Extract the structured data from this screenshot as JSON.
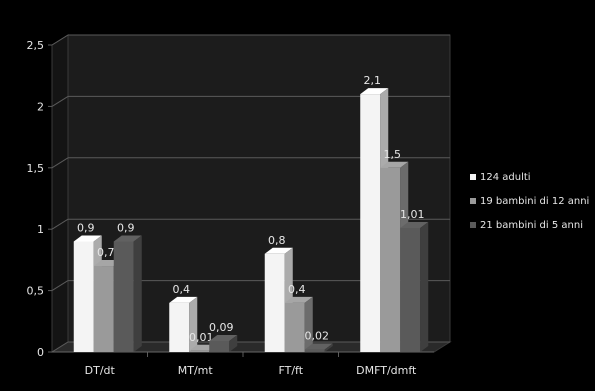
{
  "chart_data": {
    "type": "bar",
    "categories": [
      "DT/dt",
      "MT/mt",
      "FT/ft",
      "DMFT/dmft"
    ],
    "series": [
      {
        "name": "124 adulti",
        "values": [
          0.9,
          0.4,
          0.8,
          2.1
        ],
        "labels": [
          "0,9",
          "0,4",
          "0,8",
          "2,1"
        ]
      },
      {
        "name": "19 bambini di 12 anni",
        "values": [
          0.7,
          0.01,
          0.4,
          1.5
        ],
        "labels": [
          "0,7",
          "0,01",
          "0,4",
          "1,5"
        ]
      },
      {
        "name": "21 bambini di 5 anni",
        "values": [
          0.9,
          0.09,
          0.02,
          1.01
        ],
        "labels": [
          "0,9",
          "0,09",
          "0,02",
          "1,01"
        ]
      }
    ],
    "ylim": [
      0,
      2.5
    ],
    "yticks": [
      0,
      0.5,
      1,
      1.5,
      2,
      2.5
    ],
    "ytick_labels": [
      "0",
      "0,5",
      "1",
      "1,5",
      "2",
      "2,5"
    ],
    "grid": true,
    "legend_position": "right",
    "style": "3d-clustered-columns"
  },
  "colors": {
    "background": "#000000",
    "wall": "#1c1c1c",
    "series": [
      "#f4f4f4",
      "#9a9a9a",
      "#5a5a5a"
    ],
    "text": "#e6e6e6",
    "grid": "#5a5a5a"
  }
}
